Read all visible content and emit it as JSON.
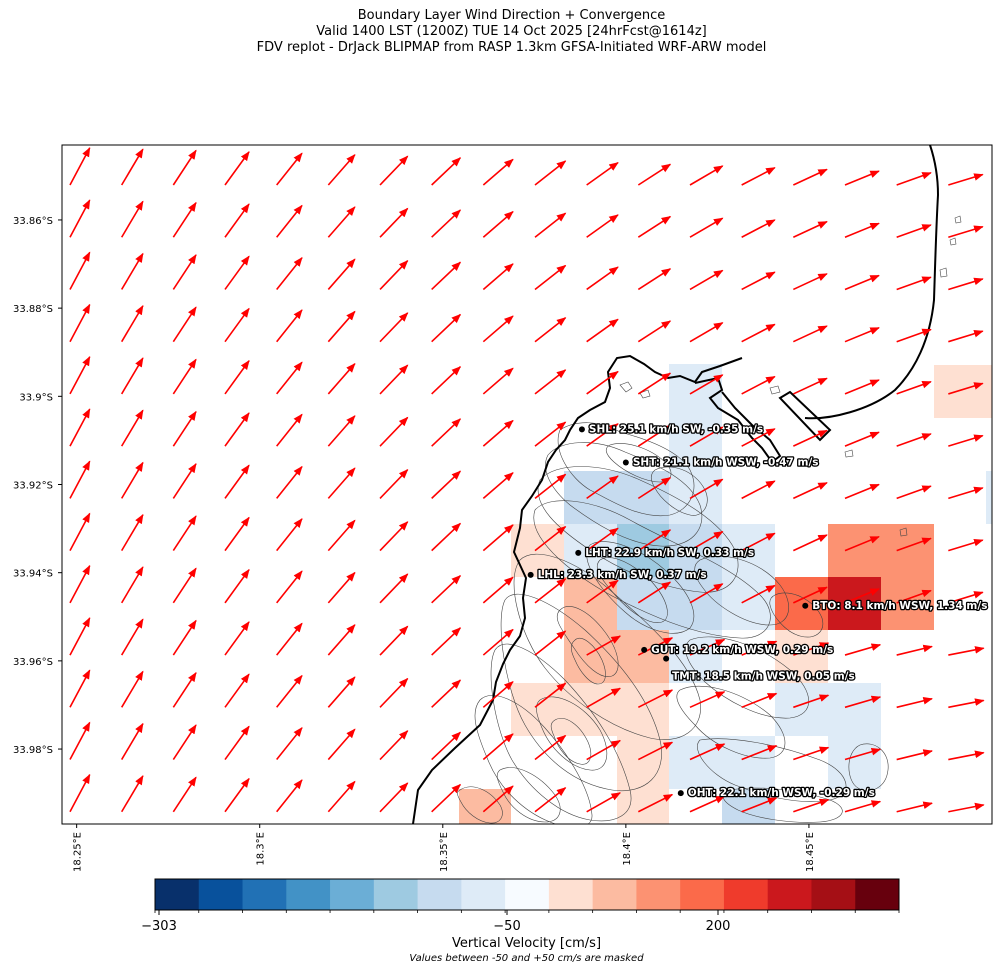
{
  "title": {
    "line1": "Boundary Layer Wind Direction + Convergence",
    "line2": "Valid 1400 LST (1200Z) TUE 14 Oct 2025 [24hrFcst@1614z]",
    "line3": "FDV replot - DrJack BLIPMAP from RASP 1.3km GFSA-Initiated WRF-ARW model"
  },
  "map": {
    "lat_range": [
      -33.997,
      -33.843
    ],
    "lon_range": [
      18.246,
      18.5
    ],
    "lat_ticks": [
      {
        "value": -33.86,
        "label": "33.86°S"
      },
      {
        "value": -33.88,
        "label": "33.88°S"
      },
      {
        "value": -33.9,
        "label": "33.9°S"
      },
      {
        "value": -33.92,
        "label": "33.92°S"
      },
      {
        "value": -33.94,
        "label": "33.94°S"
      },
      {
        "value": -33.96,
        "label": "33.96°S"
      },
      {
        "value": -33.98,
        "label": "33.98°S"
      }
    ],
    "lon_ticks": [
      {
        "value": 18.25,
        "label": "18.25°E"
      },
      {
        "value": 18.3,
        "label": "18.3°E"
      },
      {
        "value": 18.35,
        "label": "18.35°E"
      },
      {
        "value": 18.4,
        "label": "18.4°E"
      },
      {
        "value": 18.45,
        "label": "18.45°E"
      }
    ],
    "arrow_color": "#ff0000",
    "coast_color": "#000000",
    "contour_color": "#333333"
  },
  "stations": [
    {
      "code": "SHL",
      "lon": 18.388,
      "lat": -33.9075,
      "label": "SHL: 25.1 km/h SW, -0.35 m/s"
    },
    {
      "code": "SHT",
      "lon": 18.4,
      "lat": -33.915,
      "label": "SHT: 21.1 km/h WSW, -0.47 m/s"
    },
    {
      "code": "LHT",
      "lon": 18.387,
      "lat": -33.9355,
      "label": "LHT: 22.9 km/h SW, 0.33 m/s"
    },
    {
      "code": "LHL",
      "lon": 18.374,
      "lat": -33.9405,
      "label": "LHL: 23.3 km/h SW, 0.37 m/s"
    },
    {
      "code": "BTO",
      "lon": 18.449,
      "lat": -33.9475,
      "label": "BTO: 8.1 km/h WSW, 1.34 m/s"
    },
    {
      "code": "GUT",
      "lon": 18.405,
      "lat": -33.9575,
      "label": "GUT: 19.2 km/h WSW, 0.29 m/s"
    },
    {
      "code": "TMT",
      "lon": 18.411,
      "lat": -33.9595,
      "label": "TMT: 18.5 km/h WSW, 0.05 m/s"
    },
    {
      "code": "OHT",
      "lon": 18.415,
      "lat": -33.99,
      "label": "OHT: 22.1 km/h WSW, -0.29 m/s"
    }
  ],
  "colorbar": {
    "label": "Vertical Velocity [cm/s]",
    "note": "Values between -50 and +50 cm/s are masked",
    "tick_labels": [
      "−303",
      "−50",
      "200"
    ],
    "colors": [
      "#08306b",
      "#08519c",
      "#2171b5",
      "#4292c6",
      "#6baed6",
      "#9ecae1",
      "#c6dbef",
      "#deebf7",
      "#f7fbff",
      "#fee0d2",
      "#fcbba1",
      "#fc9272",
      "#fb6a4a",
      "#ef3b2c",
      "#cb181d",
      "#a50f15",
      "#67000d"
    ]
  }
}
